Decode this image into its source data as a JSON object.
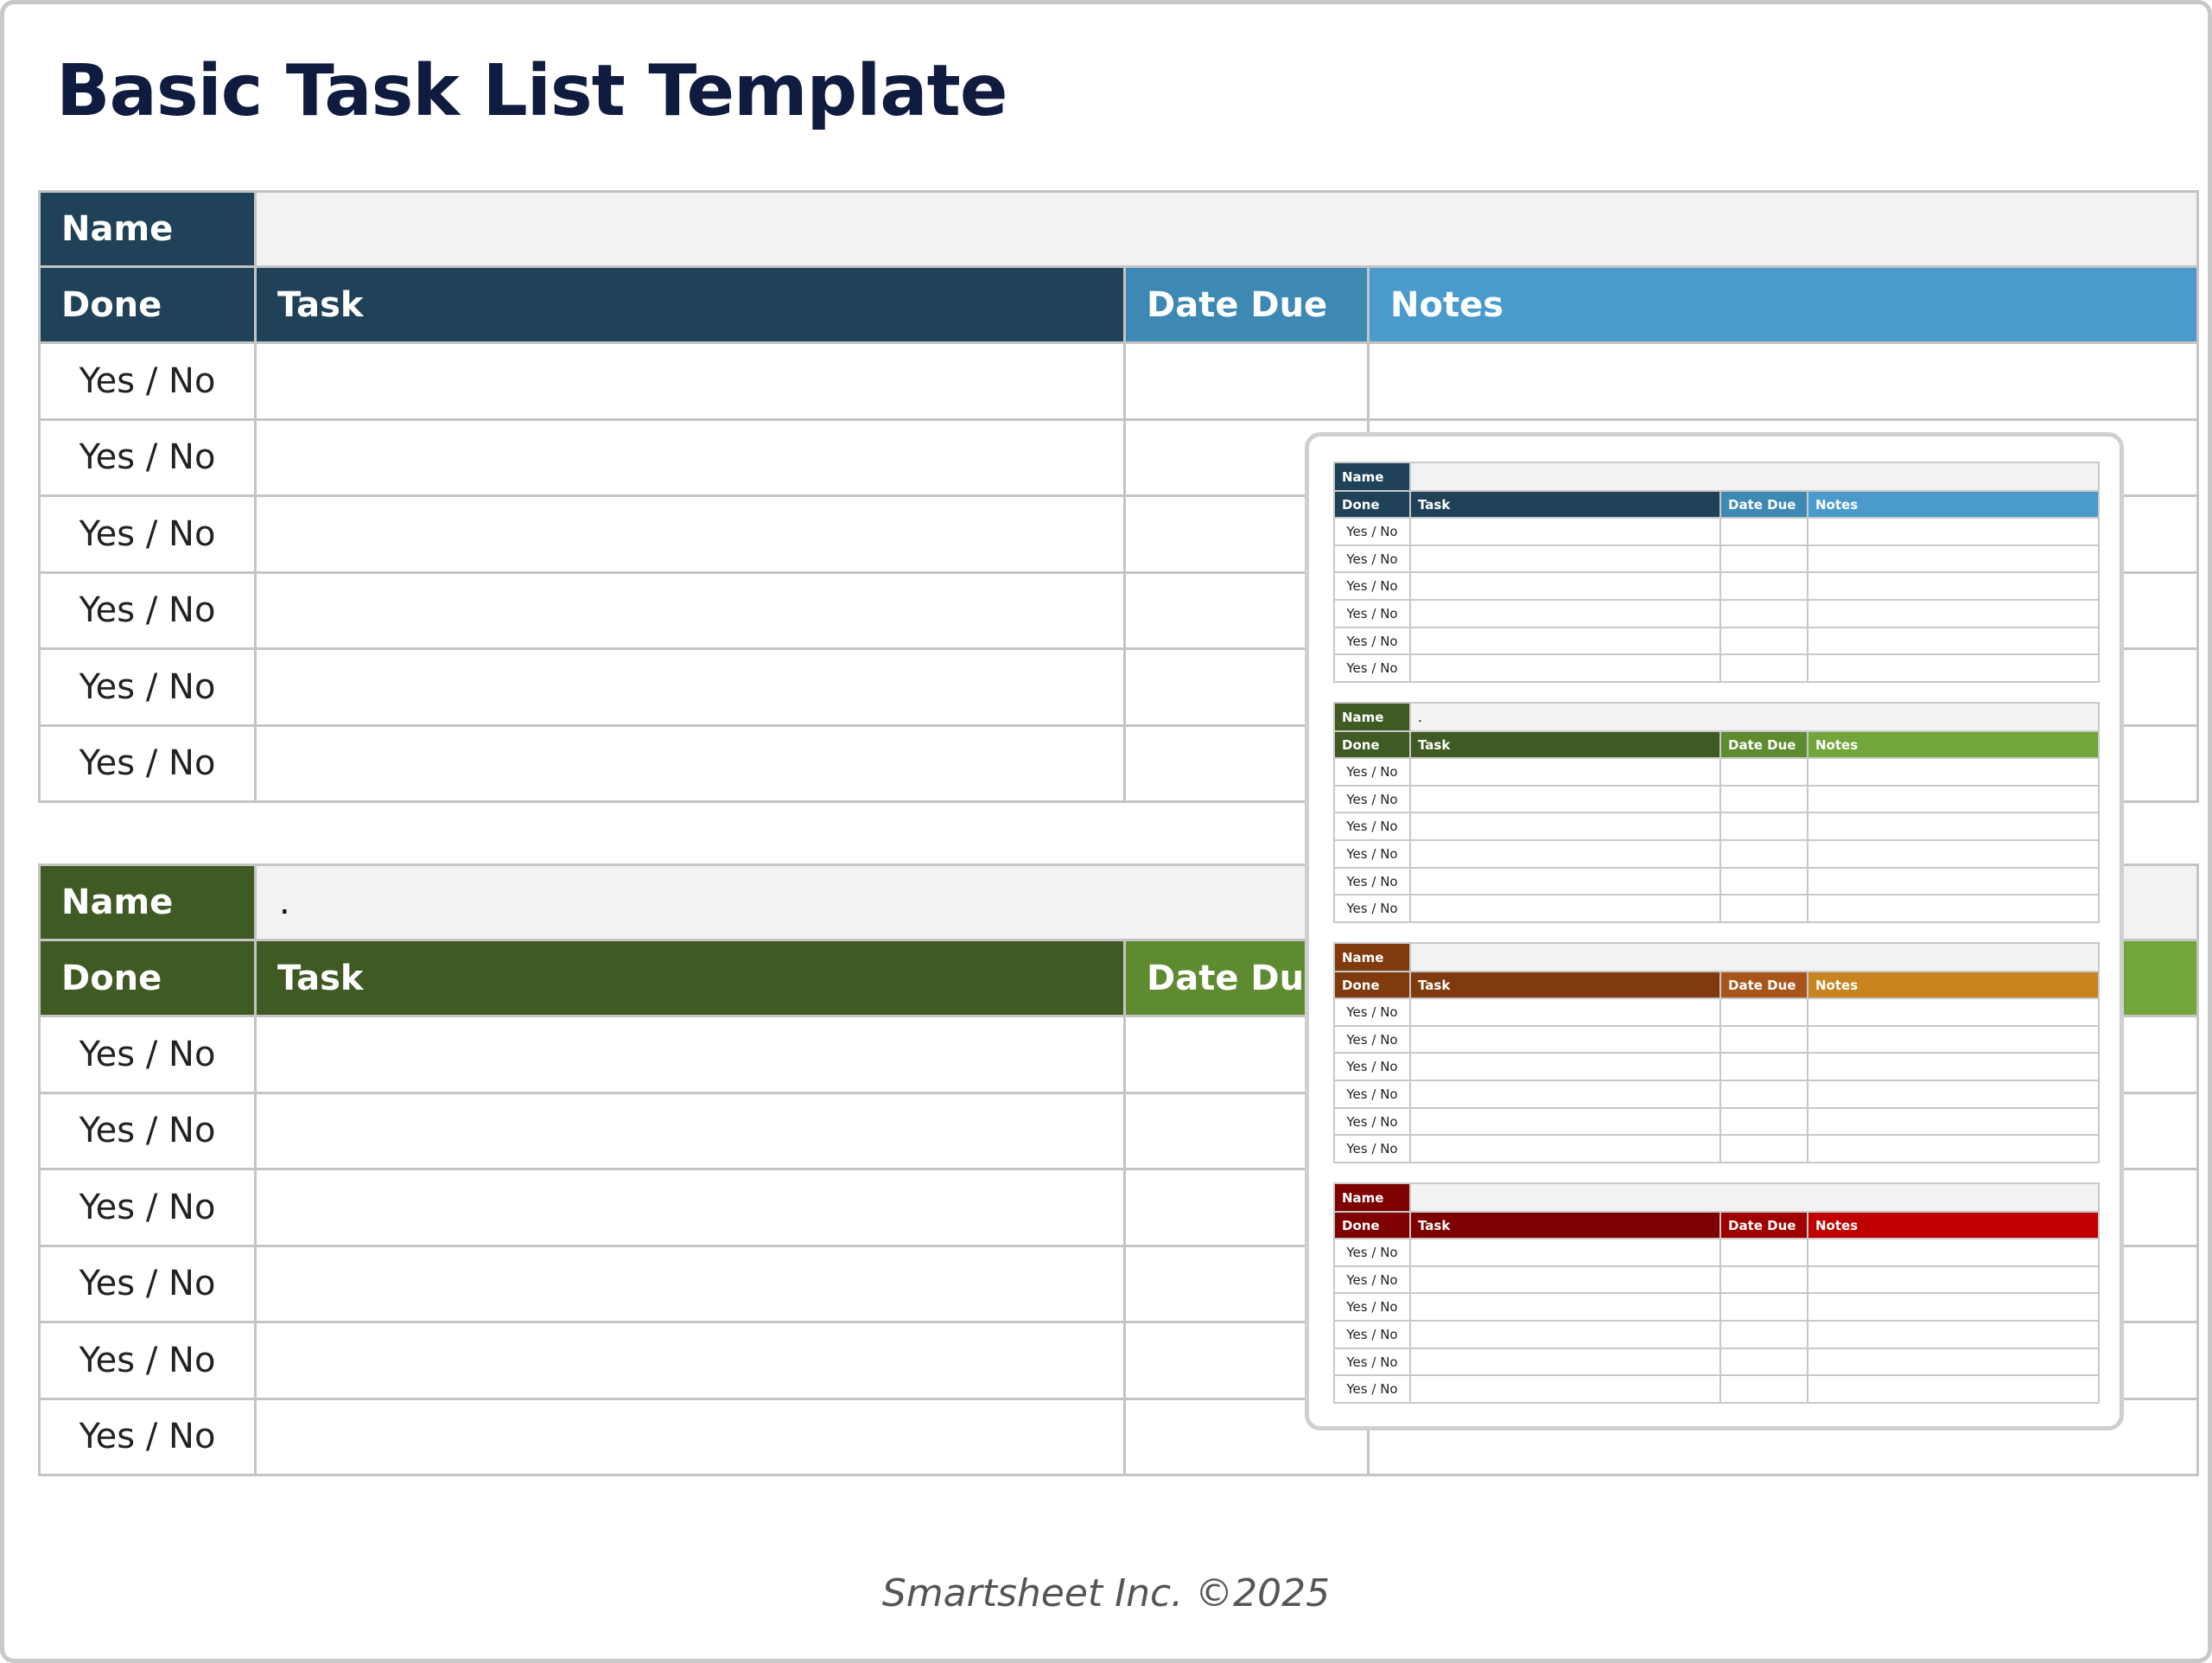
{
  "title": "Basic Task List Template",
  "headers": {
    "name": "Name",
    "done": "Done",
    "task": "Task",
    "date_due": "Date Due",
    "notes": "Notes"
  },
  "row_value": "Yes / No",
  "tables": [
    {
      "theme": "blue",
      "name_value": "",
      "colors": {
        "dark": "#1f4258",
        "date": "#3e88b4",
        "notes": "#4a9bcc"
      }
    },
    {
      "theme": "green",
      "name_value": ".",
      "colors": {
        "dark": "#3f5a23",
        "date": "#5e8b30",
        "notes": "#72a63a"
      }
    }
  ],
  "preview_tables": [
    {
      "theme": "blue",
      "name_value": "",
      "colors": {
        "dark": "#1f4258",
        "date": "#3e88b4",
        "notes": "#4a9bcc"
      }
    },
    {
      "theme": "green",
      "name_value": ".",
      "colors": {
        "dark": "#3f5a23",
        "date": "#5e8b30",
        "notes": "#72a63a"
      }
    },
    {
      "theme": "orange",
      "name_value": "",
      "colors": {
        "dark": "#7f3b0e",
        "date": "#a8541a",
        "notes": "#c8841f"
      }
    },
    {
      "theme": "red",
      "name_value": "",
      "colors": {
        "dark": "#7f0000",
        "date": "#a00000",
        "notes": "#c00000"
      }
    }
  ],
  "footer": "Smartsheet Inc. ©2025"
}
